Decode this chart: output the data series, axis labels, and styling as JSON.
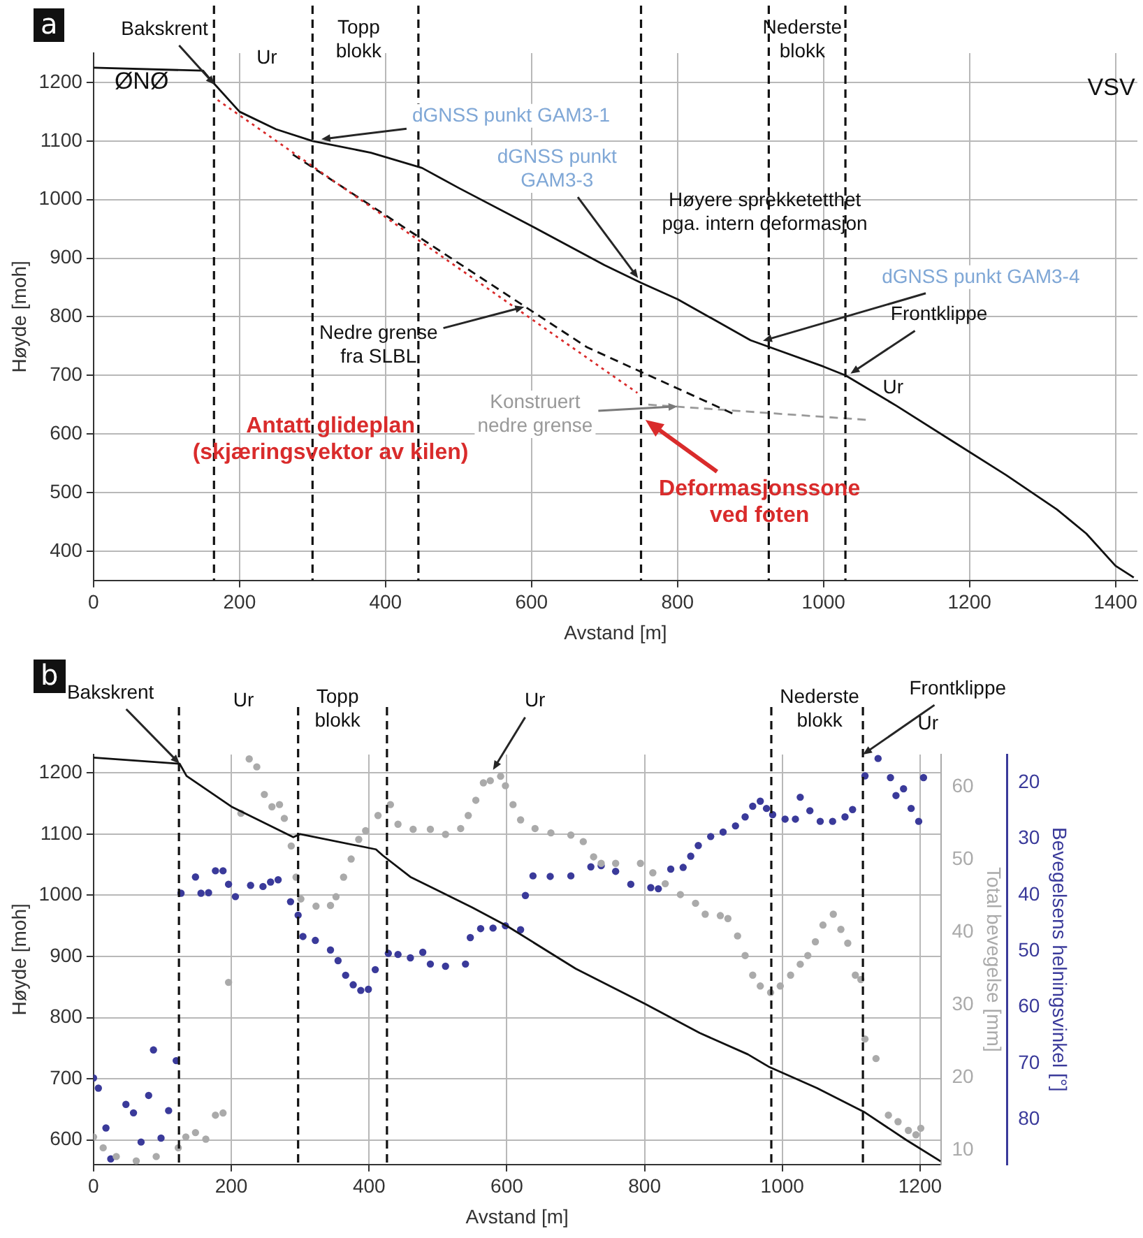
{
  "chart_data": [
    {
      "type": "line",
      "title": "a",
      "xlabel": "Avstand [m]",
      "ylabel": "Høyde [moh]",
      "xlim": [
        0,
        1430
      ],
      "xticks": [
        0,
        200,
        400,
        600,
        800,
        1000,
        1200,
        1400
      ],
      "ylim": [
        350,
        1250
      ],
      "yticks": [
        400,
        500,
        600,
        700,
        800,
        900,
        1000,
        1100,
        1200
      ],
      "grid": true,
      "series": [
        {
          "color": "#111111",
          "marker": "none",
          "line_style": "solid",
          "x": [
            0,
            150,
            160,
            200,
            250,
            300,
            380,
            450,
            500,
            600,
            700,
            750,
            800,
            900,
            1000,
            1030,
            1100,
            1180,
            1250,
            1320,
            1360,
            1400,
            1425
          ],
          "values": [
            1225,
            1220,
            1205,
            1150,
            1120,
            1100,
            1080,
            1054,
            1020,
            955,
            888,
            858,
            830,
            760,
            715,
            700,
            648,
            585,
            530,
            471,
            430,
            375,
            355
          ]
        },
        {
          "color": "#d92b2b",
          "marker": "none",
          "line_style": "dotted",
          "x": [
            170,
            745
          ],
          "values": [
            1170,
            670
          ]
        },
        {
          "color": "#111111",
          "marker": "none",
          "line_style": "dashed",
          "x": [
            273,
            676,
            877
          ],
          "values": [
            1077,
            748,
            634
          ]
        },
        {
          "color": "#999999",
          "marker": "none",
          "line_style": "dashed",
          "x": [
            760,
            1060
          ],
          "values": [
            650,
            624
          ]
        }
      ],
      "ref_lines": [
        {
          "axis": "x",
          "value": 165,
          "color": "#111111",
          "line_style": "dashed"
        },
        {
          "axis": "x",
          "value": 300,
          "color": "#111111",
          "line_style": "dashed"
        },
        {
          "axis": "x",
          "value": 445,
          "color": "#111111",
          "line_style": "dashed"
        },
        {
          "axis": "x",
          "value": 750,
          "color": "#111111",
          "line_style": "dashed"
        },
        {
          "axis": "x",
          "value": 925,
          "color": "#111111",
          "line_style": "dashed"
        },
        {
          "axis": "x",
          "value": 1030,
          "color": "#111111",
          "line_style": "dashed"
        }
      ],
      "annotations": [
        {
          "text": "Bakskrent",
          "x": 166,
          "y": 1196
        },
        "Ur",
        "Topp\nblokk",
        "Nederste\nblokk",
        "ØNØ",
        "VSV",
        {
          "text": "dGNSS punkt GAM3-1",
          "x": 312,
          "y": 1103
        },
        {
          "text": "dGNSS punkt\nGAM3-3",
          "x": 746,
          "y": 866
        },
        "Høyere sprekketetthet\npga. intern deformasjon",
        {
          "text": "dGNSS punkt GAM3-4",
          "x": 917,
          "y": 759
        },
        {
          "text": "Frontklippe",
          "x": 1037,
          "y": 703
        },
        "Ur",
        {
          "text": "Nedre grense\nfra SLBL",
          "x": 590,
          "y": 817
        },
        "Antatt glideplan\n(skjæringsvektor av kilen)",
        {
          "text": "Konstruert\nnedre grense",
          "x": 800,
          "y": 647
        },
        {
          "text": "Deformasjonssone\nved foten",
          "x": 756,
          "y": 624
        }
      ]
    },
    {
      "type": "line",
      "title": "b",
      "xlabel": "Avstand [m]",
      "ylabel": "Høyde [moh]",
      "y2label": "Total bevegelse [mm]",
      "y3label": "Bevegelsens helningsvinkel [°]",
      "xlim": [
        0,
        1230
      ],
      "xticks": [
        0,
        200,
        400,
        600,
        800,
        1000,
        1200
      ],
      "ylim": [
        560,
        1230
      ],
      "yticks": [
        600,
        700,
        800,
        900,
        1000,
        1100,
        1200
      ],
      "y2lim": [
        8,
        64.5
      ],
      "y2ticks": [
        10,
        20,
        30,
        40,
        50,
        60
      ],
      "y3lim": [
        88,
        15
      ],
      "y3ticks": [
        20,
        30,
        40,
        50,
        60,
        70,
        80
      ],
      "grid": true,
      "series": [
        {
          "color": "#111111",
          "marker": "none",
          "line_style": "solid",
          "x": [
            0,
            125,
            135,
            200,
            290,
            300,
            410,
            420,
            460,
            550,
            600,
            700,
            800,
            880,
            950,
            980,
            1050,
            1120,
            1180,
            1230
          ],
          "values": [
            1225,
            1215,
            1195,
            1145,
            1095,
            1100,
            1075,
            1065,
            1030,
            980,
            950,
            880,
            823,
            775,
            740,
            720,
            685,
            645,
            600,
            565
          ]
        },
        {
          "type": "scatter",
          "axis": "y2",
          "color": "#aaaaaa",
          "marker": "circle",
          "x": [
            0,
            14,
            33,
            62,
            91,
            123,
            134,
            148,
            163,
            177,
            188,
            196,
            214,
            226,
            237,
            248,
            259,
            270,
            277,
            287,
            294,
            301,
            323,
            344,
            352,
            363,
            374,
            385,
            395,
            413,
            431,
            442,
            464,
            489,
            511,
            533,
            544,
            555,
            566,
            576,
            591,
            598,
            609,
            620,
            641,
            664,
            693,
            711,
            726,
            737,
            758,
            794,
            812,
            830,
            852,
            874,
            888,
            910,
            921,
            935,
            946,
            957,
            968,
            983,
            997,
            1012,
            1026,
            1037,
            1048,
            1059,
            1074,
            1085,
            1095,
            1106,
            1114,
            1120,
            1136,
            1154,
            1168,
            1183,
            1194,
            1201
          ],
          "values": [
            11.8,
            10.3,
            9.1,
            8.5,
            9.1,
            10.3,
            11.8,
            12.4,
            11.5,
            14.8,
            15.1,
            33.1,
            56.4,
            63.9,
            62.8,
            59,
            57.3,
            57.6,
            55.7,
            51.9,
            47.6,
            44.6,
            43.6,
            43.7,
            44.9,
            47.6,
            50.1,
            52.8,
            54,
            56.1,
            57.6,
            54.9,
            54.2,
            54.2,
            53.5,
            54.3,
            56.1,
            58.2,
            60.6,
            60.9,
            61.5,
            60.2,
            57.6,
            55.5,
            54.3,
            53.7,
            53.4,
            52.5,
            50.4,
            49.5,
            49.5,
            49.5,
            48.2,
            46.7,
            45.2,
            44,
            42.5,
            42.3,
            41.9,
            39.5,
            36.8,
            34.1,
            32.6,
            31.7,
            32.6,
            34.1,
            35.6,
            36.8,
            38.7,
            41,
            42.5,
            40.4,
            38.5,
            34.1,
            33.5,
            25.3,
            22.6,
            14.8,
            13.9,
            12.7,
            12.1,
            13
          ]
        },
        {
          "type": "scatter",
          "axis": "y3",
          "color": "#3a3a9a",
          "marker": "circle",
          "x": [
            0,
            7,
            18,
            25,
            47,
            58,
            69,
            80,
            87,
            98,
            109,
            120,
            127,
            148,
            156,
            167,
            177,
            188,
            196,
            206,
            228,
            246,
            257,
            268,
            286,
            297,
            304,
            322,
            344,
            355,
            366,
            377,
            388,
            399,
            409,
            428,
            442,
            460,
            478,
            489,
            511,
            540,
            547,
            562,
            580,
            598,
            620,
            627,
            638,
            663,
            693,
            722,
            737,
            758,
            780,
            809,
            820,
            838,
            856,
            867,
            878,
            896,
            914,
            932,
            946,
            957,
            968,
            977,
            986,
            1004,
            1019,
            1026,
            1040,
            1055,
            1073,
            1091,
            1102,
            1120,
            1139,
            1157,
            1165,
            1176,
            1187,
            1198,
            1205
          ],
          "values": [
            72.6,
            74.4,
            81.5,
            87,
            77.3,
            78.8,
            84,
            75.7,
            67.6,
            83.3,
            78.4,
            69.5,
            39.7,
            36.8,
            39.7,
            39.6,
            35.7,
            35.7,
            38.1,
            40.3,
            38.3,
            38.5,
            37.7,
            37.3,
            41.2,
            43.6,
            47.4,
            48.1,
            49.8,
            51.7,
            54.3,
            56,
            57,
            56.8,
            53.3,
            50.4,
            50.6,
            51.2,
            50.2,
            52.3,
            52.7,
            52.3,
            47.6,
            46,
            45.9,
            45.5,
            46.2,
            40.1,
            36.6,
            36.7,
            36.6,
            35,
            34.8,
            35.8,
            38.1,
            38.7,
            38.9,
            35.4,
            35.1,
            33.1,
            31.2,
            29.6,
            28.8,
            27.7,
            26.1,
            24.2,
            23.3,
            24.6,
            25.7,
            26.5,
            26.5,
            22.6,
            25,
            26.9,
            26.9,
            26.1,
            24.8,
            18.8,
            15.7,
            19.1,
            22.3,
            21.1,
            24.6,
            26.9,
            19.1
          ]
        }
      ],
      "ref_lines": [
        {
          "axis": "x",
          "value": 124,
          "color": "#111111",
          "line_style": "dashed"
        },
        {
          "axis": "x",
          "value": 297,
          "color": "#111111",
          "line_style": "dashed"
        },
        {
          "axis": "x",
          "value": 426,
          "color": "#111111",
          "line_style": "dashed"
        },
        {
          "axis": "x",
          "value": 984,
          "color": "#111111",
          "line_style": "dashed"
        },
        {
          "axis": "x",
          "value": 1117,
          "color": "#111111",
          "line_style": "dashed"
        }
      ],
      "annotations": [
        {
          "text": "Bakskrent",
          "x": 125,
          "y": 1215
        },
        "Ur",
        "Topp\nblokk",
        {
          "text": "Ur",
          "x": 580,
          "y": 1205
        },
        "Nederste\nblokk",
        {
          "text": "Frontklippe",
          "x": 1117,
          "y": 1230
        },
        "Ur"
      ]
    }
  ]
}
